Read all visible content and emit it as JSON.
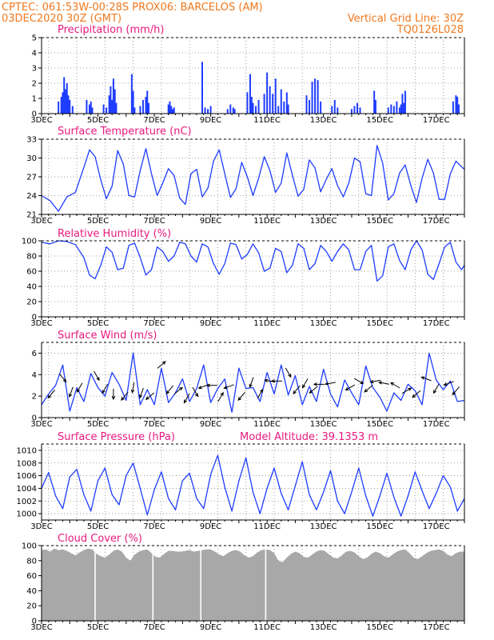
{
  "header": {
    "line1_left": "CPTEC:   061:53W-00:28S   PROX06: BARCELOS (AM)",
    "line2_left": "03DEC2020 30Z (GMT)",
    "line2_right": "Vertical Grid Line: 30Z",
    "line3_right": "TQ0126L028"
  },
  "colors": {
    "header": "#f0781e",
    "title": "#e8197f",
    "series": "#1e3cff",
    "cloud": "#a8a8a8",
    "grid": "#888888"
  },
  "x_axis": {
    "start_day": 3,
    "end_day": 18,
    "tick_labels": [
      {
        "day": 3,
        "label": "3DEC"
      },
      {
        "day": 5,
        "label": "5DEC"
      },
      {
        "day": 7,
        "label": "7DEC"
      },
      {
        "day": 9,
        "label": "9DEC"
      },
      {
        "day": 11,
        "label": "11DEC"
      },
      {
        "day": 13,
        "label": "13DEC"
      },
      {
        "day": 15,
        "label": "15DEC"
      },
      {
        "day": 17,
        "label": "17DEC"
      }
    ]
  },
  "chart_data": [
    {
      "type": "bar",
      "title": "Precipitation (mm/h)",
      "ylim": [
        0,
        5
      ],
      "yticks": [
        0,
        1,
        2,
        3,
        4,
        5
      ],
      "x": [
        3.6,
        3.7,
        3.75,
        3.8,
        3.85,
        3.9,
        3.95,
        4.0,
        4.1,
        4.6,
        4.7,
        4.75,
        4.8,
        5.2,
        5.3,
        5.4,
        5.45,
        5.5,
        5.55,
        5.6,
        5.65,
        6.2,
        6.25,
        6.3,
        6.5,
        6.6,
        6.7,
        6.75,
        6.8,
        7.5,
        7.55,
        7.6,
        7.65,
        7.7,
        8.7,
        8.8,
        8.9,
        9.0,
        9.6,
        9.7,
        9.8,
        9.85,
        10.3,
        10.4,
        10.45,
        10.5,
        10.6,
        10.7,
        10.9,
        11.0,
        11.1,
        11.2,
        11.3,
        11.4,
        11.5,
        11.6,
        11.7,
        11.75,
        12.4,
        12.5,
        12.6,
        12.7,
        12.8,
        12.9,
        13.3,
        13.4,
        13.5,
        14.0,
        14.1,
        14.2,
        14.3,
        14.8,
        14.85,
        15.3,
        15.4,
        15.5,
        15.6,
        15.7,
        15.75,
        15.8,
        15.85,
        15.9,
        17.6,
        17.7,
        17.75,
        17.8
      ],
      "values": [
        0.8,
        1.1,
        1.4,
        2.4,
        1.6,
        2.0,
        1.2,
        0.9,
        0.5,
        0.9,
        0.6,
        0.8,
        0.4,
        0.6,
        0.4,
        1.2,
        1.8,
        0.9,
        2.3,
        1.6,
        0.7,
        2.6,
        1.5,
        0.4,
        0.5,
        0.9,
        1.1,
        1.5,
        0.7,
        0.6,
        0.8,
        0.5,
        0.3,
        0.4,
        3.4,
        0.4,
        0.3,
        0.5,
        0.3,
        0.6,
        0.4,
        0.3,
        1.4,
        2.6,
        1.1,
        0.7,
        0.5,
        0.9,
        1.3,
        2.7,
        1.8,
        1.3,
        2.3,
        0.5,
        1.6,
        0.8,
        1.4,
        0.6,
        1.2,
        0.9,
        2.1,
        2.3,
        2.2,
        0.8,
        0.5,
        0.9,
        0.4,
        0.3,
        0.5,
        0.7,
        0.4,
        1.5,
        0.9,
        0.4,
        0.6,
        0.5,
        0.8,
        0.4,
        0.6,
        1.3,
        0.7,
        1.5,
        0.8,
        1.2,
        1.1,
        0.6
      ]
    },
    {
      "type": "line",
      "title": "Surface Temperature (nC)",
      "ylim": [
        21,
        33
      ],
      "yticks": [
        21,
        24,
        27,
        30,
        33
      ],
      "x": [
        3.0,
        3.3,
        3.6,
        3.9,
        4.2,
        4.5,
        4.7,
        4.9,
        5.1,
        5.3,
        5.5,
        5.7,
        5.9,
        6.1,
        6.3,
        6.5,
        6.7,
        6.9,
        7.1,
        7.3,
        7.5,
        7.7,
        7.9,
        8.1,
        8.3,
        8.5,
        8.7,
        8.9,
        9.1,
        9.3,
        9.5,
        9.7,
        9.9,
        10.1,
        10.3,
        10.5,
        10.7,
        10.9,
        11.1,
        11.3,
        11.5,
        11.7,
        11.9,
        12.1,
        12.3,
        12.5,
        12.7,
        12.9,
        13.1,
        13.3,
        13.5,
        13.7,
        13.9,
        14.1,
        14.3,
        14.5,
        14.7,
        14.9,
        15.1,
        15.3,
        15.5,
        15.7,
        15.9,
        16.1,
        16.3,
        16.5,
        16.7,
        16.9,
        17.1,
        17.3,
        17.5,
        17.7,
        17.9,
        18.0
      ],
      "values": [
        24.0,
        23.2,
        21.5,
        23.8,
        24.5,
        28.5,
        31.3,
        30.2,
        26.5,
        23.5,
        25.5,
        31.2,
        29.0,
        24.0,
        23.8,
        28.0,
        31.5,
        27.5,
        24.0,
        26.0,
        28.3,
        27.2,
        23.6,
        22.6,
        27.5,
        28.2,
        23.8,
        25.2,
        29.5,
        31.3,
        27.5,
        23.7,
        25.1,
        29.3,
        27.0,
        24.0,
        26.8,
        30.2,
        28.0,
        24.5,
        26.0,
        30.8,
        27.2,
        23.9,
        25.0,
        29.7,
        28.4,
        24.6,
        26.6,
        28.3,
        25.6,
        23.8,
        26.0,
        30.0,
        29.4,
        24.3,
        24.0,
        32.0,
        29.2,
        23.3,
        24.3,
        27.6,
        28.9,
        25.6,
        22.9,
        26.8,
        29.8,
        27.6,
        23.4,
        23.4,
        27.5,
        29.5,
        28.6,
        28.2
      ]
    },
    {
      "type": "line",
      "title": "Relative Humidity (%)",
      "ylim": [
        0,
        100
      ],
      "yticks": [
        0,
        20,
        40,
        60,
        80,
        100
      ],
      "x": [
        3.0,
        3.3,
        3.6,
        3.9,
        4.2,
        4.5,
        4.7,
        4.9,
        5.1,
        5.3,
        5.5,
        5.7,
        5.9,
        6.1,
        6.3,
        6.5,
        6.7,
        6.9,
        7.1,
        7.3,
        7.5,
        7.7,
        7.9,
        8.1,
        8.3,
        8.5,
        8.7,
        8.9,
        9.1,
        9.3,
        9.5,
        9.7,
        9.9,
        10.1,
        10.3,
        10.5,
        10.7,
        10.9,
        11.1,
        11.3,
        11.5,
        11.7,
        11.9,
        12.1,
        12.3,
        12.5,
        12.7,
        12.9,
        13.1,
        13.3,
        13.5,
        13.7,
        13.9,
        14.1,
        14.3,
        14.5,
        14.7,
        14.9,
        15.1,
        15.3,
        15.5,
        15.7,
        15.9,
        16.1,
        16.3,
        16.5,
        16.7,
        16.9,
        17.1,
        17.3,
        17.5,
        17.7,
        17.9,
        18.0
      ],
      "values": [
        98,
        96,
        100,
        99,
        95,
        78,
        55,
        50,
        68,
        92,
        85,
        62,
        64,
        94,
        97,
        78,
        55,
        62,
        92,
        86,
        73,
        80,
        98,
        96,
        80,
        72,
        96,
        92,
        70,
        56,
        70,
        97,
        95,
        76,
        82,
        96,
        84,
        60,
        64,
        90,
        86,
        58,
        68,
        96,
        90,
        62,
        70,
        94,
        86,
        73,
        86,
        96,
        88,
        62,
        62,
        86,
        94,
        47,
        54,
        92,
        96,
        74,
        62,
        88,
        100,
        88,
        56,
        49,
        70,
        92,
        98,
        72,
        62,
        68
      ]
    },
    {
      "type": "line",
      "title": "Surface Wind (m/s)",
      "ylim": [
        0,
        7
      ],
      "yticks": [
        0,
        2,
        4,
        6
      ],
      "x": [
        3.0,
        3.25,
        3.5,
        3.75,
        4.0,
        4.25,
        4.5,
        4.75,
        5.0,
        5.25,
        5.5,
        5.75,
        6.0,
        6.25,
        6.5,
        6.75,
        7.0,
        7.25,
        7.5,
        7.75,
        8.0,
        8.25,
        8.5,
        8.75,
        9.0,
        9.25,
        9.5,
        9.75,
        10.0,
        10.25,
        10.5,
        10.75,
        11.0,
        11.25,
        11.5,
        11.75,
        12.0,
        12.25,
        12.5,
        12.75,
        13.0,
        13.25,
        13.5,
        13.75,
        14.0,
        14.25,
        14.5,
        14.75,
        15.0,
        15.25,
        15.5,
        15.75,
        16.0,
        16.25,
        16.5,
        16.75,
        17.0,
        17.25,
        17.5,
        17.75,
        18.0
      ],
      "values": [
        1.2,
        2.2,
        3.0,
        4.9,
        0.6,
        2.8,
        1.5,
        4.1,
        2.8,
        2.0,
        4.2,
        3.1,
        1.6,
        6.0,
        1.2,
        2.6,
        1.2,
        4.6,
        1.4,
        2.3,
        3.6,
        1.5,
        2.7,
        4.9,
        1.4,
        2.7,
        3.6,
        0.5,
        4.6,
        2.7,
        2.8,
        1.5,
        4.2,
        2.2,
        4.9,
        2.1,
        3.9,
        1.2,
        2.9,
        1.5,
        4.5,
        2.2,
        1.0,
        3.5,
        2.3,
        1.2,
        4.8,
        2.8,
        1.9,
        0.6,
        2.3,
        1.6,
        3.1,
        2.5,
        1.2,
        6.0,
        3.5,
        2.6,
        3.4,
        1.5,
        1.6
      ],
      "arrows": [
        {
          "x": 3.35,
          "y": 2.2,
          "dir_deg": 230
        },
        {
          "x": 3.75,
          "y": 3.7,
          "dir_deg": 310
        },
        {
          "x": 4.05,
          "y": 2.4,
          "dir_deg": 250
        },
        {
          "x": 4.35,
          "y": 2.8,
          "dir_deg": 240
        },
        {
          "x": 4.95,
          "y": 3.9,
          "dir_deg": 300
        },
        {
          "x": 5.25,
          "y": 2.7,
          "dir_deg": 240
        },
        {
          "x": 5.55,
          "y": 2.2,
          "dir_deg": 270
        },
        {
          "x": 5.95,
          "y": 2.0,
          "dir_deg": 230
        },
        {
          "x": 6.25,
          "y": 2.8,
          "dir_deg": 260
        },
        {
          "x": 6.55,
          "y": 2.3,
          "dir_deg": 250
        },
        {
          "x": 6.85,
          "y": 2.0,
          "dir_deg": 220
        },
        {
          "x": 7.25,
          "y": 4.9,
          "dir_deg": 40
        },
        {
          "x": 7.55,
          "y": 2.6,
          "dir_deg": 230
        },
        {
          "x": 7.85,
          "y": 2.5,
          "dir_deg": 40
        },
        {
          "x": 8.15,
          "y": 1.8,
          "dir_deg": 240
        },
        {
          "x": 8.45,
          "y": 2.4,
          "dir_deg": 300
        },
        {
          "x": 8.75,
          "y": 2.9,
          "dir_deg": 200
        },
        {
          "x": 9.05,
          "y": 3.0,
          "dir_deg": 180
        },
        {
          "x": 9.35,
          "y": 1.9,
          "dir_deg": 60
        },
        {
          "x": 9.65,
          "y": 2.9,
          "dir_deg": 200
        },
        {
          "x": 10.1,
          "y": 2.0,
          "dir_deg": 230
        },
        {
          "x": 10.45,
          "y": 3.3,
          "dir_deg": 250
        },
        {
          "x": 10.75,
          "y": 2.2,
          "dir_deg": 60
        },
        {
          "x": 11.1,
          "y": 3.4,
          "dir_deg": 170
        },
        {
          "x": 11.35,
          "y": 3.4,
          "dir_deg": 180
        },
        {
          "x": 11.75,
          "y": 4.2,
          "dir_deg": 300
        },
        {
          "x": 12.05,
          "y": 2.6,
          "dir_deg": 230
        },
        {
          "x": 12.35,
          "y": 3.2,
          "dir_deg": 240
        },
        {
          "x": 12.65,
          "y": 2.6,
          "dir_deg": 220
        },
        {
          "x": 12.85,
          "y": 3.1,
          "dir_deg": 180
        },
        {
          "x": 13.25,
          "y": 3.2,
          "dir_deg": 190
        },
        {
          "x": 13.95,
          "y": 2.8,
          "dir_deg": 210
        },
        {
          "x": 14.25,
          "y": 3.4,
          "dir_deg": 330
        },
        {
          "x": 14.6,
          "y": 2.7,
          "dir_deg": 220
        },
        {
          "x": 14.85,
          "y": 3.4,
          "dir_deg": 190
        },
        {
          "x": 15.15,
          "y": 3.2,
          "dir_deg": 170
        },
        {
          "x": 15.55,
          "y": 3.0,
          "dir_deg": 150
        },
        {
          "x": 15.95,
          "y": 2.5,
          "dir_deg": 30
        },
        {
          "x": 16.3,
          "y": 2.2,
          "dir_deg": 220
        },
        {
          "x": 16.65,
          "y": 3.6,
          "dir_deg": 160
        },
        {
          "x": 17.0,
          "y": 2.7,
          "dir_deg": 240
        },
        {
          "x": 17.45,
          "y": 3.2,
          "dir_deg": 200
        },
        {
          "x": 17.7,
          "y": 2.5,
          "dir_deg": 230
        }
      ]
    },
    {
      "type": "line",
      "title": "Surface Pressure (hPa)",
      "subtitle": "Model Altitude: 39.1353 m",
      "ylim": [
        999,
        1011
      ],
      "yticks": [
        1000,
        1002,
        1004,
        1006,
        1008,
        1010
      ],
      "x": [
        3.0,
        3.25,
        3.5,
        3.75,
        4.0,
        4.25,
        4.5,
        4.75,
        5.0,
        5.25,
        5.5,
        5.75,
        6.0,
        6.25,
        6.5,
        6.75,
        7.0,
        7.25,
        7.5,
        7.75,
        8.0,
        8.25,
        8.5,
        8.75,
        9.0,
        9.25,
        9.5,
        9.75,
        10.0,
        10.25,
        10.5,
        10.75,
        11.0,
        11.25,
        11.5,
        11.75,
        12.0,
        12.25,
        12.5,
        12.75,
        13.0,
        13.25,
        13.5,
        13.75,
        14.0,
        14.25,
        14.5,
        14.75,
        15.0,
        15.25,
        15.5,
        15.75,
        16.0,
        16.25,
        16.5,
        16.75,
        17.0,
        17.25,
        17.5,
        17.75,
        18.0
      ],
      "values": [
        1004.0,
        1006.5,
        1002.8,
        1000.8,
        1005.8,
        1007.0,
        1003.0,
        1000.4,
        1005.2,
        1007.2,
        1003.0,
        1001.4,
        1006.0,
        1008.0,
        1004.0,
        999.8,
        1003.8,
        1006.6,
        1002.4,
        1000.6,
        1005.2,
        1006.4,
        1002.4,
        1000.8,
        1006.2,
        1009.2,
        1004.2,
        1000.4,
        1005.2,
        1008.8,
        1003.4,
        1000.0,
        1004.0,
        1007.2,
        1003.2,
        1000.6,
        1004.4,
        1008.2,
        1003.0,
        1000.6,
        1003.4,
        1006.8,
        1002.0,
        1000.0,
        1003.4,
        1007.2,
        1002.8,
        999.6,
        1002.8,
        1006.4,
        1002.6,
        999.6,
        1002.8,
        1006.6,
        1003.6,
        1000.8,
        1003.2,
        1006.0,
        1004.2,
        1000.4,
        1002.4
      ]
    },
    {
      "type": "area",
      "title": "Cloud Cover (%)",
      "ylim": [
        0,
        100
      ],
      "yticks": [
        0,
        20,
        40,
        60,
        80,
        100
      ],
      "x": [
        3.0,
        3.15,
        3.3,
        3.45,
        3.6,
        3.75,
        3.9,
        4.05,
        4.2,
        4.35,
        4.5,
        4.65,
        4.8,
        4.95,
        5.1,
        5.25,
        5.4,
        5.55,
        5.7,
        5.85,
        6.0,
        6.15,
        6.3,
        6.45,
        6.6,
        6.75,
        6.9,
        7.05,
        7.2,
        7.35,
        7.5,
        7.65,
        7.8,
        7.95,
        8.1,
        8.25,
        8.4,
        8.55,
        8.7,
        8.85,
        9.0,
        9.15,
        9.3,
        9.45,
        9.6,
        9.75,
        9.9,
        10.05,
        10.2,
        10.35,
        10.5,
        10.65,
        10.8,
        10.95,
        11.1,
        11.25,
        11.4,
        11.55,
        11.7,
        11.85,
        12.0,
        12.15,
        12.3,
        12.45,
        12.6,
        12.75,
        12.9,
        13.05,
        13.2,
        13.35,
        13.5,
        13.65,
        13.8,
        13.95,
        14.1,
        14.25,
        14.4,
        14.55,
        14.7,
        14.85,
        15.0,
        15.15,
        15.3,
        15.45,
        15.6,
        15.75,
        15.9,
        16.05,
        16.2,
        16.35,
        16.5,
        16.65,
        16.8,
        16.95,
        17.1,
        17.25,
        17.4,
        17.55,
        17.7,
        17.85,
        18.0
      ],
      "values": [
        94,
        95,
        92,
        96,
        94,
        95,
        93,
        90,
        87,
        91,
        94,
        96,
        95,
        89,
        86,
        84,
        88,
        93,
        95,
        92,
        84,
        80,
        88,
        92,
        94,
        95,
        90,
        85,
        84,
        89,
        93,
        93,
        92,
        92,
        93,
        94,
        92,
        93,
        94,
        95,
        95,
        92,
        88,
        86,
        90,
        93,
        94,
        92,
        87,
        84,
        86,
        91,
        94,
        95,
        94,
        90,
        80,
        78,
        84,
        89,
        92,
        90,
        85,
        84,
        88,
        92,
        94,
        93,
        88,
        84,
        83,
        87,
        92,
        93,
        91,
        86,
        82,
        84,
        89,
        92,
        90,
        86,
        84,
        88,
        92,
        94,
        95,
        90,
        84,
        82,
        86,
        90,
        93,
        94,
        95,
        93,
        88,
        86,
        90,
        92,
        92
      ],
      "gaps": [
        4.9,
        6.95,
        8.65,
        10.95
      ]
    }
  ]
}
